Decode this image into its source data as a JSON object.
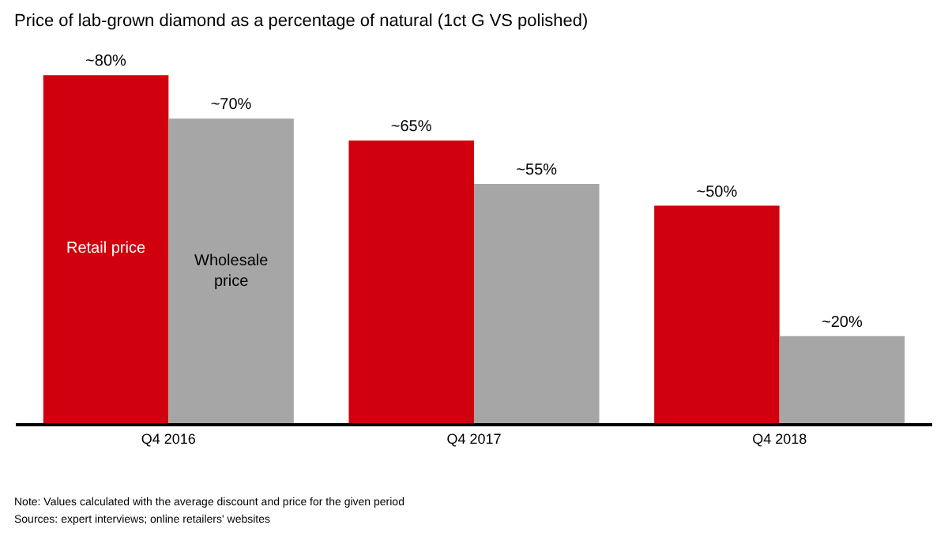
{
  "chart_data": {
    "type": "bar",
    "title": "Price of lab-grown diamond as a percentage of natural (1ct G VS polished)",
    "categories": [
      "Q4 2016",
      "Q4 2017",
      "Q4 2018"
    ],
    "series": [
      {
        "name": "Retail price",
        "color": "#d0000e",
        "values": [
          80,
          65,
          50
        ],
        "value_labels": [
          "~80%",
          "~65%",
          "~50%"
        ]
      },
      {
        "name": "Wholesale price",
        "color": "#a6a6a6",
        "values": [
          70,
          55,
          20
        ],
        "value_labels": [
          "~70%",
          "~55%",
          "~20%"
        ]
      }
    ],
    "annotations": [
      "Note: Values calculated with the average discount and price for the given period",
      "Sources: expert interviews; online retailers' websites"
    ],
    "legend": false
  }
}
